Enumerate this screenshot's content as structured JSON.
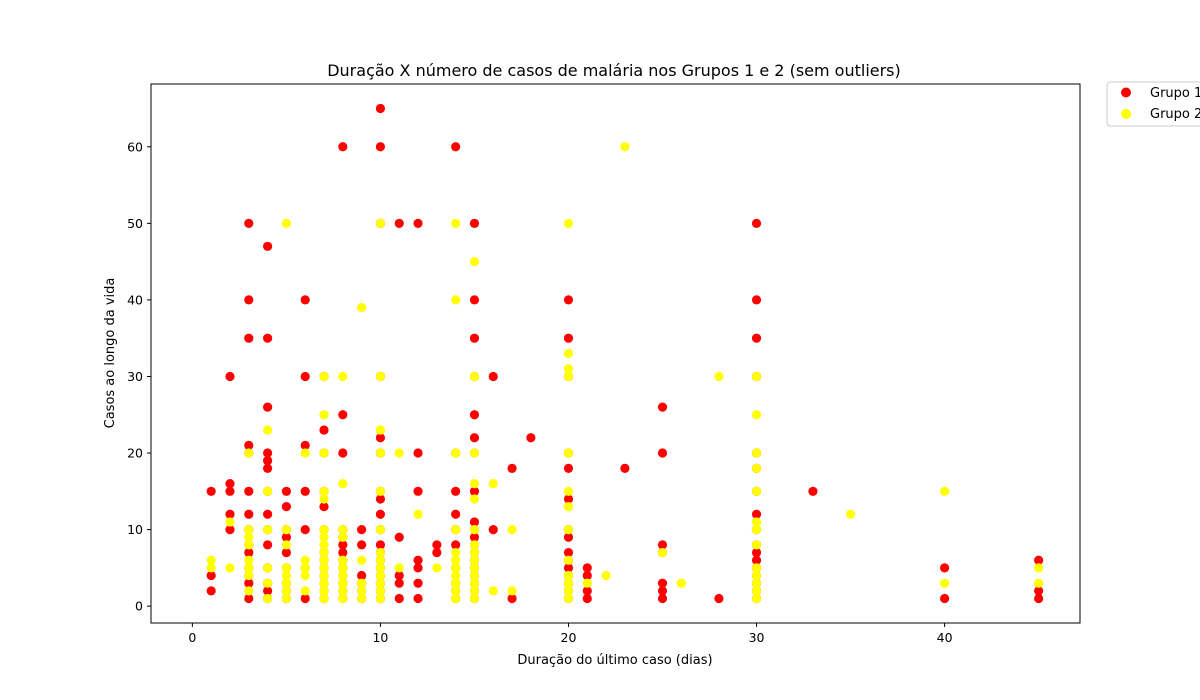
{
  "chart_data": {
    "type": "scatter",
    "title": "Duração X número de casos de malária nos Grupos 1 e 2 (sem outliers)",
    "xlabel": "Duração do último caso (dias)",
    "ylabel": "Casos ao longo da vida",
    "xlim": [
      -2.2,
      47.2
    ],
    "ylim": [
      -2.2,
      68.2
    ],
    "xticks": [
      0,
      10,
      20,
      30,
      40
    ],
    "yticks": [
      0,
      10,
      20,
      30,
      40,
      50,
      60
    ],
    "grid": false,
    "legend_position": "outside-top-right",
    "series": [
      {
        "name": "Grupo 1",
        "color": "#ff0000",
        "points": [
          [
            1,
            15
          ],
          [
            1,
            4
          ],
          [
            1,
            2
          ],
          [
            2,
            30
          ],
          [
            2,
            16
          ],
          [
            2,
            15
          ],
          [
            2,
            12
          ],
          [
            2,
            10
          ],
          [
            3,
            50
          ],
          [
            3,
            40
          ],
          [
            3,
            35
          ],
          [
            3,
            21
          ],
          [
            3,
            20
          ],
          [
            3,
            15
          ],
          [
            3,
            12
          ],
          [
            3,
            10
          ],
          [
            3,
            8
          ],
          [
            3,
            7
          ],
          [
            3,
            5
          ],
          [
            3,
            4
          ],
          [
            3,
            3
          ],
          [
            3,
            1
          ],
          [
            4,
            47
          ],
          [
            4,
            35
          ],
          [
            4,
            26
          ],
          [
            4,
            20
          ],
          [
            4,
            19
          ],
          [
            4,
            18
          ],
          [
            4,
            15
          ],
          [
            4,
            12
          ],
          [
            4,
            10
          ],
          [
            4,
            8
          ],
          [
            4,
            5
          ],
          [
            4,
            3
          ],
          [
            4,
            2
          ],
          [
            4,
            1
          ],
          [
            5,
            15
          ],
          [
            5,
            13
          ],
          [
            5,
            10
          ],
          [
            5,
            9
          ],
          [
            5,
            7
          ],
          [
            5,
            5
          ],
          [
            5,
            3
          ],
          [
            5,
            2
          ],
          [
            5,
            1
          ],
          [
            6,
            40
          ],
          [
            6,
            30
          ],
          [
            6,
            21
          ],
          [
            6,
            15
          ],
          [
            6,
            10
          ],
          [
            6,
            5
          ],
          [
            6,
            1
          ],
          [
            7,
            30
          ],
          [
            7,
            23
          ],
          [
            7,
            20
          ],
          [
            7,
            15
          ],
          [
            7,
            13
          ],
          [
            7,
            10
          ],
          [
            7,
            7
          ],
          [
            7,
            6
          ],
          [
            7,
            5
          ],
          [
            7,
            4
          ],
          [
            7,
            3
          ],
          [
            7,
            2
          ],
          [
            7,
            1
          ],
          [
            8,
            60
          ],
          [
            8,
            25
          ],
          [
            8,
            20
          ],
          [
            8,
            10
          ],
          [
            8,
            9
          ],
          [
            8,
            8
          ],
          [
            8,
            7
          ],
          [
            8,
            6
          ],
          [
            8,
            5
          ],
          [
            8,
            4
          ],
          [
            8,
            3
          ],
          [
            8,
            2
          ],
          [
            8,
            1
          ],
          [
            9,
            10
          ],
          [
            9,
            8
          ],
          [
            9,
            4
          ],
          [
            9,
            3
          ],
          [
            9,
            2
          ],
          [
            9,
            1
          ],
          [
            10,
            65
          ],
          [
            10,
            60
          ],
          [
            10,
            50
          ],
          [
            10,
            30
          ],
          [
            10,
            22
          ],
          [
            10,
            20
          ],
          [
            10,
            15
          ],
          [
            10,
            14
          ],
          [
            10,
            12
          ],
          [
            10,
            10
          ],
          [
            10,
            8
          ],
          [
            10,
            7
          ],
          [
            10,
            6
          ],
          [
            10,
            5
          ],
          [
            10,
            4
          ],
          [
            10,
            3
          ],
          [
            10,
            2
          ],
          [
            10,
            1
          ],
          [
            11,
            50
          ],
          [
            11,
            9
          ],
          [
            11,
            4
          ],
          [
            11,
            3
          ],
          [
            11,
            1
          ],
          [
            12,
            50
          ],
          [
            12,
            20
          ],
          [
            12,
            15
          ],
          [
            12,
            6
          ],
          [
            12,
            5
          ],
          [
            12,
            3
          ],
          [
            12,
            1
          ],
          [
            13,
            8
          ],
          [
            13,
            7
          ],
          [
            14,
            60
          ],
          [
            14,
            20
          ],
          [
            14,
            15
          ],
          [
            14,
            12
          ],
          [
            14,
            10
          ],
          [
            14,
            8
          ],
          [
            14,
            5
          ],
          [
            14,
            3
          ],
          [
            14,
            2
          ],
          [
            14,
            1
          ],
          [
            15,
            50
          ],
          [
            15,
            40
          ],
          [
            15,
            35
          ],
          [
            15,
            30
          ],
          [
            15,
            25
          ],
          [
            15,
            22
          ],
          [
            15,
            20
          ],
          [
            15,
            15
          ],
          [
            15,
            11
          ],
          [
            15,
            10
          ],
          [
            15,
            9
          ],
          [
            15,
            8
          ],
          [
            15,
            7
          ],
          [
            15,
            6
          ],
          [
            15,
            5
          ],
          [
            15,
            4
          ],
          [
            15,
            3
          ],
          [
            15,
            2
          ],
          [
            15,
            1
          ],
          [
            16,
            30
          ],
          [
            16,
            10
          ],
          [
            17,
            18
          ],
          [
            17,
            1
          ],
          [
            18,
            22
          ],
          [
            20,
            40
          ],
          [
            20,
            35
          ],
          [
            20,
            30
          ],
          [
            20,
            20
          ],
          [
            20,
            18
          ],
          [
            20,
            14
          ],
          [
            20,
            10
          ],
          [
            20,
            9
          ],
          [
            20,
            7
          ],
          [
            20,
            6
          ],
          [
            20,
            5
          ],
          [
            20,
            4
          ],
          [
            20,
            3
          ],
          [
            20,
            2
          ],
          [
            20,
            1
          ],
          [
            21,
            5
          ],
          [
            21,
            4
          ],
          [
            21,
            2
          ],
          [
            21,
            1
          ],
          [
            23,
            18
          ],
          [
            25,
            26
          ],
          [
            25,
            20
          ],
          [
            25,
            8
          ],
          [
            25,
            7
          ],
          [
            25,
            3
          ],
          [
            25,
            2
          ],
          [
            25,
            1
          ],
          [
            28,
            1
          ],
          [
            30,
            50
          ],
          [
            30,
            40
          ],
          [
            30,
            35
          ],
          [
            30,
            30
          ],
          [
            30,
            20
          ],
          [
            30,
            18
          ],
          [
            30,
            15
          ],
          [
            30,
            12
          ],
          [
            30,
            10
          ],
          [
            30,
            8
          ],
          [
            30,
            7
          ],
          [
            30,
            6
          ],
          [
            30,
            5
          ],
          [
            30,
            4
          ],
          [
            30,
            3
          ],
          [
            30,
            2
          ],
          [
            30,
            1
          ],
          [
            33,
            15
          ],
          [
            40,
            5
          ],
          [
            40,
            1
          ],
          [
            45,
            6
          ],
          [
            45,
            2
          ],
          [
            45,
            1
          ]
        ]
      },
      {
        "name": "Grupo 2",
        "color": "#ffff00",
        "points": [
          [
            1,
            6
          ],
          [
            1,
            5
          ],
          [
            2,
            11
          ],
          [
            2,
            5
          ],
          [
            3,
            20
          ],
          [
            3,
            10
          ],
          [
            3,
            9
          ],
          [
            3,
            8
          ],
          [
            3,
            6
          ],
          [
            3,
            5
          ],
          [
            3,
            4
          ],
          [
            3,
            2
          ],
          [
            4,
            23
          ],
          [
            4,
            15
          ],
          [
            4,
            10
          ],
          [
            4,
            5
          ],
          [
            4,
            3
          ],
          [
            4,
            1
          ],
          [
            5,
            50
          ],
          [
            5,
            10
          ],
          [
            5,
            8
          ],
          [
            5,
            5
          ],
          [
            5,
            4
          ],
          [
            5,
            3
          ],
          [
            5,
            2
          ],
          [
            5,
            1
          ],
          [
            6,
            20
          ],
          [
            6,
            6
          ],
          [
            6,
            5
          ],
          [
            6,
            4
          ],
          [
            6,
            2
          ],
          [
            7,
            30
          ],
          [
            7,
            25
          ],
          [
            7,
            20
          ],
          [
            7,
            15
          ],
          [
            7,
            14
          ],
          [
            7,
            10
          ],
          [
            7,
            9
          ],
          [
            7,
            8
          ],
          [
            7,
            7
          ],
          [
            7,
            6
          ],
          [
            7,
            5
          ],
          [
            7,
            4
          ],
          [
            7,
            3
          ],
          [
            7,
            2
          ],
          [
            7,
            1
          ],
          [
            8,
            30
          ],
          [
            8,
            16
          ],
          [
            8,
            10
          ],
          [
            8,
            9
          ],
          [
            8,
            6
          ],
          [
            8,
            5
          ],
          [
            8,
            4
          ],
          [
            8,
            3
          ],
          [
            8,
            2
          ],
          [
            8,
            1
          ],
          [
            9,
            39
          ],
          [
            9,
            6
          ],
          [
            9,
            3
          ],
          [
            9,
            2
          ],
          [
            9,
            1
          ],
          [
            10,
            50
          ],
          [
            10,
            30
          ],
          [
            10,
            23
          ],
          [
            10,
            20
          ],
          [
            10,
            15
          ],
          [
            10,
            10
          ],
          [
            10,
            7
          ],
          [
            10,
            6
          ],
          [
            10,
            5
          ],
          [
            10,
            4
          ],
          [
            10,
            3
          ],
          [
            10,
            2
          ],
          [
            10,
            1
          ],
          [
            11,
            20
          ],
          [
            11,
            5
          ],
          [
            12,
            12
          ],
          [
            13,
            5
          ],
          [
            14,
            50
          ],
          [
            14,
            40
          ],
          [
            14,
            20
          ],
          [
            14,
            10
          ],
          [
            14,
            7
          ],
          [
            14,
            6
          ],
          [
            14,
            5
          ],
          [
            14,
            4
          ],
          [
            14,
            3
          ],
          [
            14,
            2
          ],
          [
            14,
            1
          ],
          [
            15,
            45
          ],
          [
            15,
            30
          ],
          [
            15,
            20
          ],
          [
            15,
            16
          ],
          [
            15,
            14
          ],
          [
            15,
            10
          ],
          [
            15,
            8
          ],
          [
            15,
            7
          ],
          [
            15,
            6
          ],
          [
            15,
            5
          ],
          [
            15,
            4
          ],
          [
            15,
            3
          ],
          [
            15,
            2
          ],
          [
            15,
            1
          ],
          [
            16,
            16
          ],
          [
            16,
            2
          ],
          [
            17,
            10
          ],
          [
            17,
            2
          ],
          [
            20,
            50
          ],
          [
            20,
            33
          ],
          [
            20,
            31
          ],
          [
            20,
            30
          ],
          [
            20,
            20
          ],
          [
            20,
            15
          ],
          [
            20,
            13
          ],
          [
            20,
            10
          ],
          [
            20,
            6
          ],
          [
            20,
            4
          ],
          [
            20,
            3
          ],
          [
            20,
            2
          ],
          [
            20,
            1
          ],
          [
            21,
            3
          ],
          [
            22,
            4
          ],
          [
            23,
            60
          ],
          [
            25,
            7
          ],
          [
            26,
            3
          ],
          [
            28,
            30
          ],
          [
            30,
            30
          ],
          [
            30,
            25
          ],
          [
            30,
            20
          ],
          [
            30,
            18
          ],
          [
            30,
            15
          ],
          [
            30,
            11
          ],
          [
            30,
            10
          ],
          [
            30,
            8
          ],
          [
            30,
            5
          ],
          [
            30,
            4
          ],
          [
            30,
            3
          ],
          [
            30,
            2
          ],
          [
            30,
            1
          ],
          [
            35,
            12
          ],
          [
            40,
            15
          ],
          [
            40,
            3
          ],
          [
            45,
            5
          ],
          [
            45,
            3
          ]
        ]
      }
    ]
  }
}
